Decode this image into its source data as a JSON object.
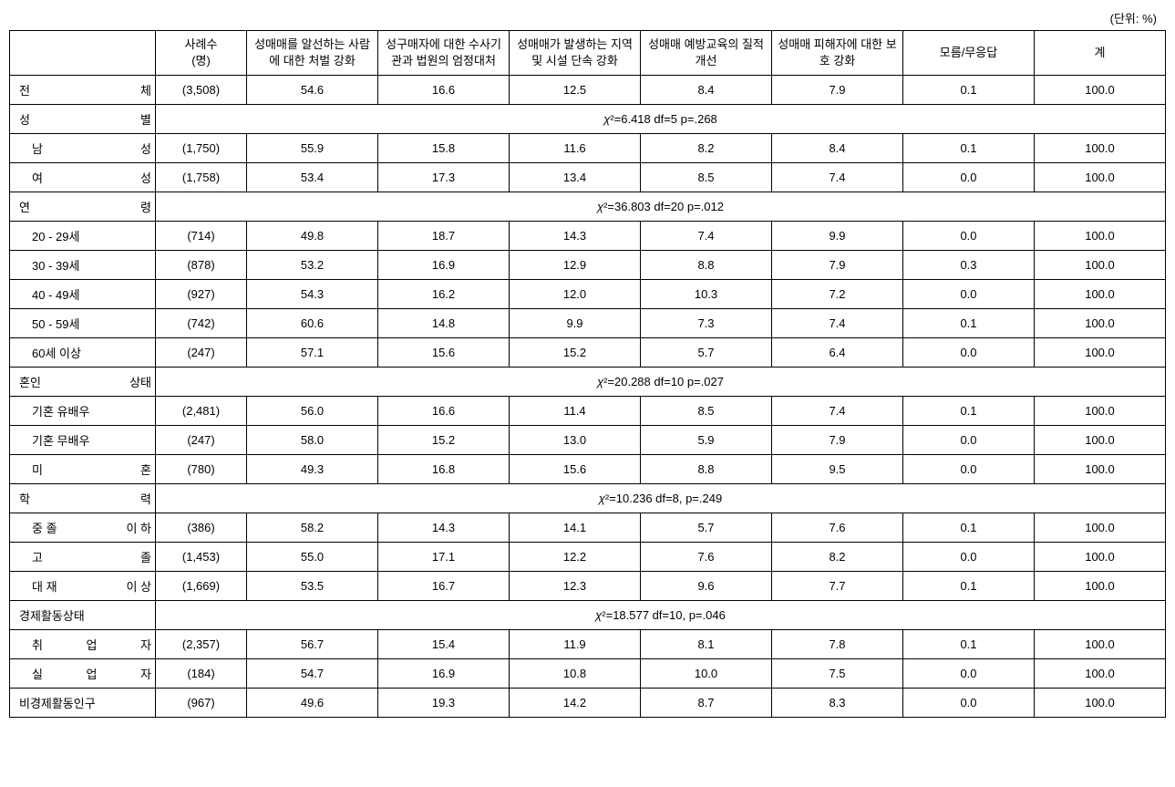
{
  "unit_label": "(단위: %)",
  "headers": {
    "blank": "",
    "count": "사례수\n(명)",
    "col1": "성매매를 알선하는 사람에 대한 처벌 강화",
    "col2": "성구매자에 대한 수사기관과 법원의 엄정대처",
    "col3": "성매매가 발생하는 지역 및 시설 단속 강화",
    "col4": "성매매 예방교육의 질적 개선",
    "col5": "성매매 피해자에 대한 보호 강화",
    "col6": "모름/무응답",
    "col7": "계"
  },
  "sections": [
    {
      "label_parts": [
        "전",
        "체"
      ],
      "indent": false,
      "count": "(3,508)",
      "values": [
        "54.6",
        "16.6",
        "12.5",
        "8.4",
        "7.9",
        "0.1",
        "100.0"
      ]
    }
  ],
  "groups": [
    {
      "header_parts": [
        "성",
        "별"
      ],
      "stat": "χ²=6.418 df=5 p=.268",
      "rows": [
        {
          "label_parts": [
            "남",
            "성"
          ],
          "count": "(1,750)",
          "values": [
            "55.9",
            "15.8",
            "11.6",
            "8.2",
            "8.4",
            "0.1",
            "100.0"
          ]
        },
        {
          "label_parts": [
            "여",
            "성"
          ],
          "count": "(1,758)",
          "values": [
            "53.4",
            "17.3",
            "13.4",
            "8.5",
            "7.4",
            "0.0",
            "100.0"
          ]
        }
      ]
    },
    {
      "header_parts": [
        "연",
        "령"
      ],
      "stat": "χ²=36.803 df=20 p=.012",
      "rows": [
        {
          "label": "20 - 29세",
          "count": "(714)",
          "values": [
            "49.8",
            "18.7",
            "14.3",
            "7.4",
            "9.9",
            "0.0",
            "100.0"
          ]
        },
        {
          "label": "30 - 39세",
          "count": "(878)",
          "values": [
            "53.2",
            "16.9",
            "12.9",
            "8.8",
            "7.9",
            "0.3",
            "100.0"
          ]
        },
        {
          "label": "40 - 49세",
          "count": "(927)",
          "values": [
            "54.3",
            "16.2",
            "12.0",
            "10.3",
            "7.2",
            "0.0",
            "100.0"
          ]
        },
        {
          "label": "50 - 59세",
          "count": "(742)",
          "values": [
            "60.6",
            "14.8",
            "9.9",
            "7.3",
            "7.4",
            "0.1",
            "100.0"
          ]
        },
        {
          "label": "60세 이상",
          "count": "(247)",
          "values": [
            "57.1",
            "15.6",
            "15.2",
            "5.7",
            "6.4",
            "0.0",
            "100.0"
          ]
        }
      ]
    },
    {
      "header_parts": [
        "혼인",
        "상태"
      ],
      "header_single": "혼인 상태",
      "stat": "χ²=20.288 df=10 p=.027",
      "rows": [
        {
          "label": "기혼 유배우",
          "count": "(2,481)",
          "values": [
            "56.0",
            "16.6",
            "11.4",
            "8.5",
            "7.4",
            "0.1",
            "100.0"
          ]
        },
        {
          "label": "기혼 무배우",
          "count": "(247)",
          "values": [
            "58.0",
            "15.2",
            "13.0",
            "5.9",
            "7.9",
            "0.0",
            "100.0"
          ]
        },
        {
          "label_parts": [
            "미",
            "혼"
          ],
          "count": "(780)",
          "values": [
            "49.3",
            "16.8",
            "15.6",
            "8.8",
            "9.5",
            "0.0",
            "100.0"
          ]
        }
      ]
    },
    {
      "header_parts": [
        "학",
        "력"
      ],
      "stat": "χ²=10.236 df=8, p=.249",
      "rows": [
        {
          "label_parts": [
            "중 졸",
            "이 하"
          ],
          "label": "중 졸 이 하",
          "count": "(386)",
          "values": [
            "58.2",
            "14.3",
            "14.1",
            "5.7",
            "7.6",
            "0.1",
            "100.0"
          ]
        },
        {
          "label_parts": [
            "고",
            "졸"
          ],
          "count": "(1,453)",
          "values": [
            "55.0",
            "17.1",
            "12.2",
            "7.6",
            "8.2",
            "0.0",
            "100.0"
          ]
        },
        {
          "label_parts": [
            "대 재",
            "이 상"
          ],
          "label": "대 재 이 상",
          "count": "(1,669)",
          "values": [
            "53.5",
            "16.7",
            "12.3",
            "9.6",
            "7.7",
            "0.1",
            "100.0"
          ]
        }
      ]
    },
    {
      "header_single": "경제활동상태",
      "stat": "χ²=18.577 df=10, p=.046",
      "rows": [
        {
          "label_parts": [
            "취",
            "업",
            "자"
          ],
          "count": "(2,357)",
          "values": [
            "56.7",
            "15.4",
            "11.9",
            "8.1",
            "7.8",
            "0.1",
            "100.0"
          ]
        },
        {
          "label_parts": [
            "실",
            "업",
            "자"
          ],
          "count": "(184)",
          "values": [
            "54.7",
            "16.9",
            "10.8",
            "10.0",
            "7.5",
            "0.0",
            "100.0"
          ]
        },
        {
          "label": "비경제활동인구",
          "noindent": true,
          "count": "(967)",
          "values": [
            "49.6",
            "19.3",
            "14.2",
            "8.7",
            "8.3",
            "0.0",
            "100.0"
          ]
        }
      ]
    }
  ]
}
